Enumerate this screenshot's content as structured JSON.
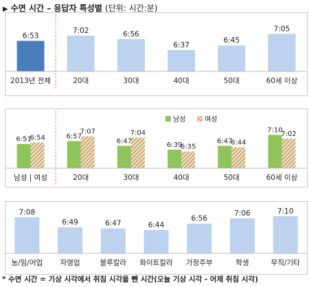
{
  "title": {
    "marker": "▶",
    "text": "수면 시간 – 응답자 특성별",
    "unit": "(단위: 시간:분)"
  },
  "footnote": "* 수면 시간 = 기상 시각에서 취침 시각을 뺀 시간(오늘 기상 시각 - 어제 취침 시각)",
  "colors": {
    "total": "#4a7ebb",
    "light": "#bcd2ee",
    "male": "#8ec45a",
    "female_hatch": "#c9a36a"
  },
  "chart_data": [
    {
      "type": "bar",
      "categories": [
        "2013년 전체",
        "20대",
        "30대",
        "40대",
        "50대",
        "60세 이상"
      ],
      "values": [
        "6:53",
        "7:02",
        "6:56",
        "6:37",
        "6:45",
        "7:05"
      ],
      "highlight_index": 0,
      "separator_after_index": 0
    },
    {
      "type": "bar",
      "categories": [
        "남성 | 여성",
        "20대",
        "30대",
        "40대",
        "50대",
        "60세 이상"
      ],
      "legend": [
        "남성",
        "여성"
      ],
      "legend_position": "top-center",
      "series": [
        {
          "name": "남성",
          "values": [
            "6:51",
            "6:57",
            "6:47",
            "6:39",
            "6:47",
            "7:10"
          ]
        },
        {
          "name": "여성",
          "values": [
            "6:54",
            "7:07",
            "7:04",
            "6:35",
            "6:44",
            "7:02"
          ]
        }
      ],
      "separator_after_index": 0
    },
    {
      "type": "bar",
      "categories": [
        "농/임/어업",
        "자영업",
        "블루칼라",
        "화이트칼라",
        "가정주부",
        "학생",
        "무직/기타"
      ],
      "values": [
        "7:08",
        "6:49",
        "6:47",
        "6:44",
        "6:56",
        "7:06",
        "7:10"
      ]
    }
  ]
}
